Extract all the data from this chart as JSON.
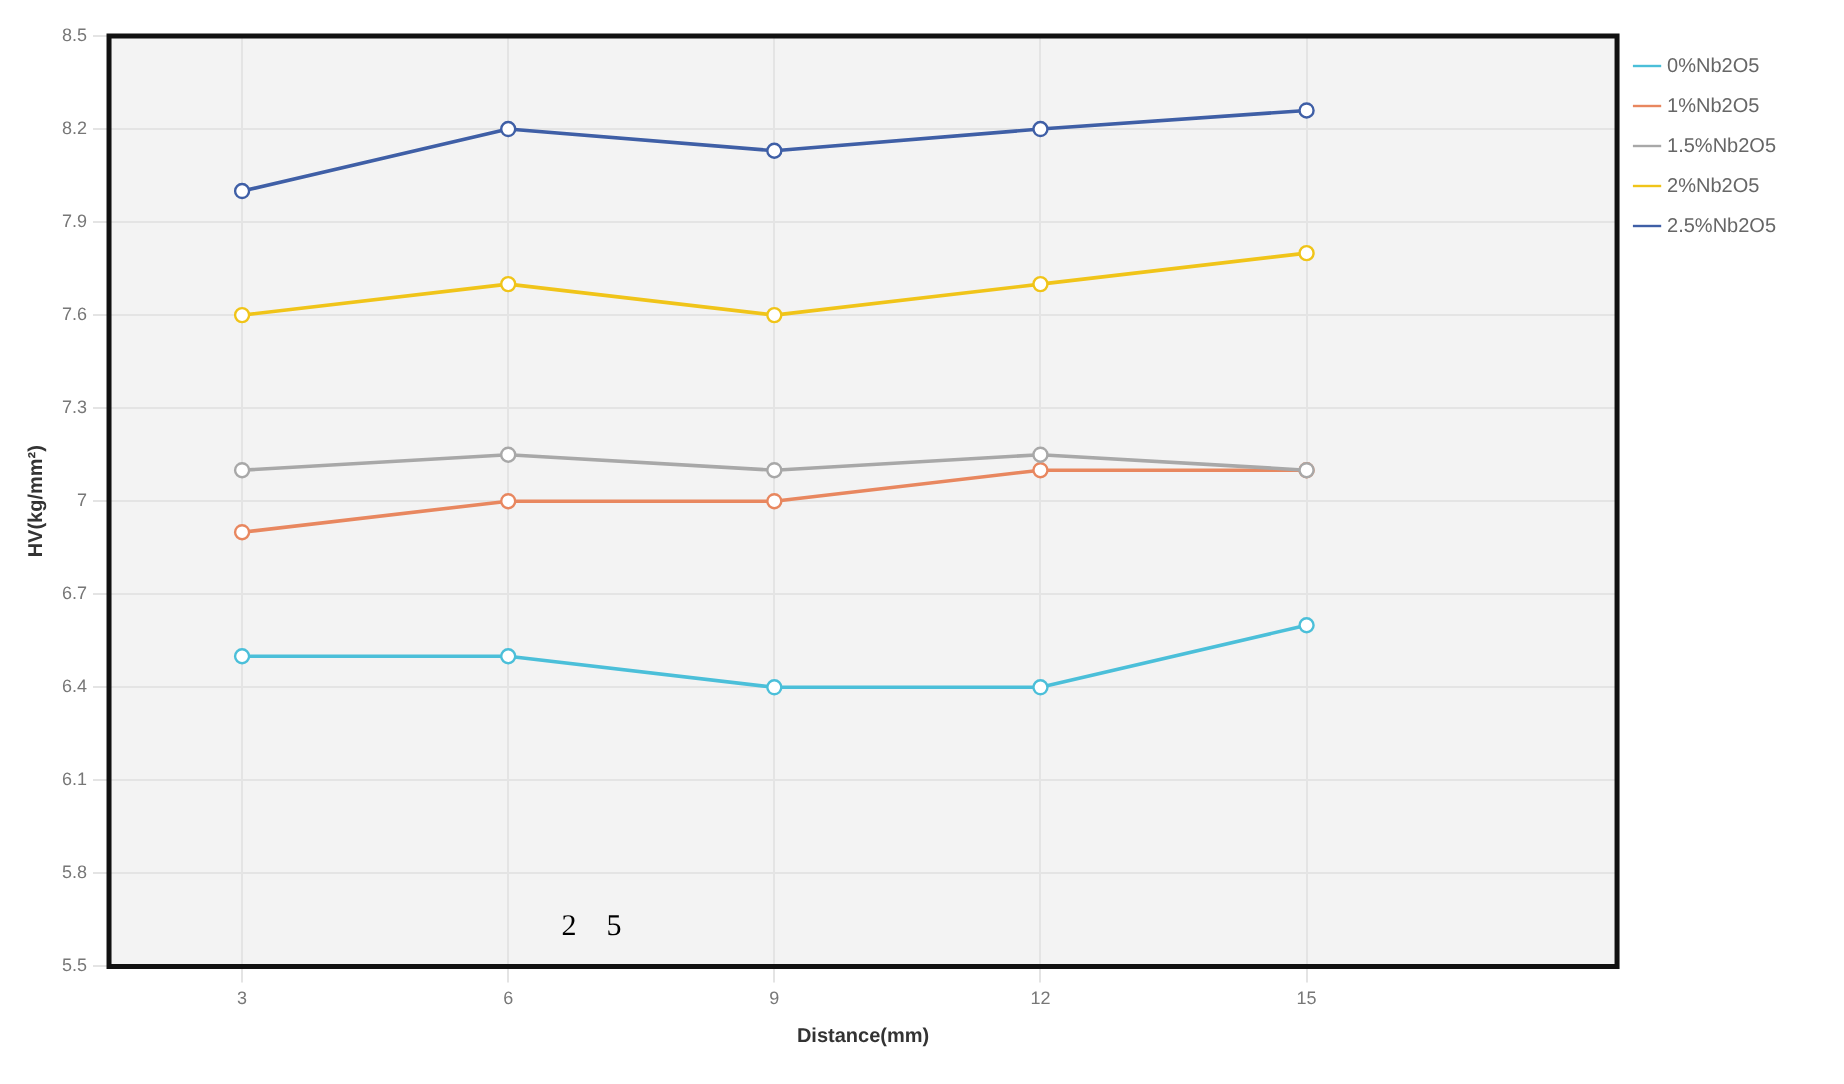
{
  "chart_data": {
    "type": "line",
    "xlabel": "Distance(mm)",
    "ylabel": "HV(kg/mm²)",
    "x": [
      3,
      6,
      9,
      12,
      15
    ],
    "xlim": [
      1.5,
      18.5
    ],
    "xticks": [
      3,
      6,
      9,
      12,
      15
    ],
    "ylim": [
      5.5,
      8.5
    ],
    "yticks": [
      5.5,
      5.8,
      6.1,
      6.4,
      6.7,
      {
        "value": 7,
        "label": "7"
      },
      7.3,
      7.6,
      7.9,
      8.2,
      8.5
    ],
    "series": [
      {
        "name": "0%Nb2O5",
        "color": "#4bbfd9",
        "values": [
          6.5,
          6.5,
          6.4,
          6.4,
          6.6
        ]
      },
      {
        "name": "1%Nb2O5",
        "color": "#e8875f",
        "values": [
          6.9,
          7.0,
          7.0,
          7.1,
          7.1
        ]
      },
      {
        "name": "1.5%Nb2O5",
        "color": "#a8a8a8",
        "values": [
          7.1,
          7.15,
          7.1,
          7.15,
          7.1
        ]
      },
      {
        "name": "2%Nb2O5",
        "color": "#f0c419",
        "values": [
          7.6,
          7.7,
          7.6,
          7.7,
          7.8
        ]
      },
      {
        "name": "2.5%Nb2O5",
        "color": "#3f5fa6",
        "values": [
          8.0,
          8.2,
          8.13,
          8.2,
          8.26
        ]
      }
    ],
    "annotations": [
      "2    5"
    ],
    "grid": true,
    "legend": "right",
    "marker": "circle",
    "line_style": "solid"
  }
}
